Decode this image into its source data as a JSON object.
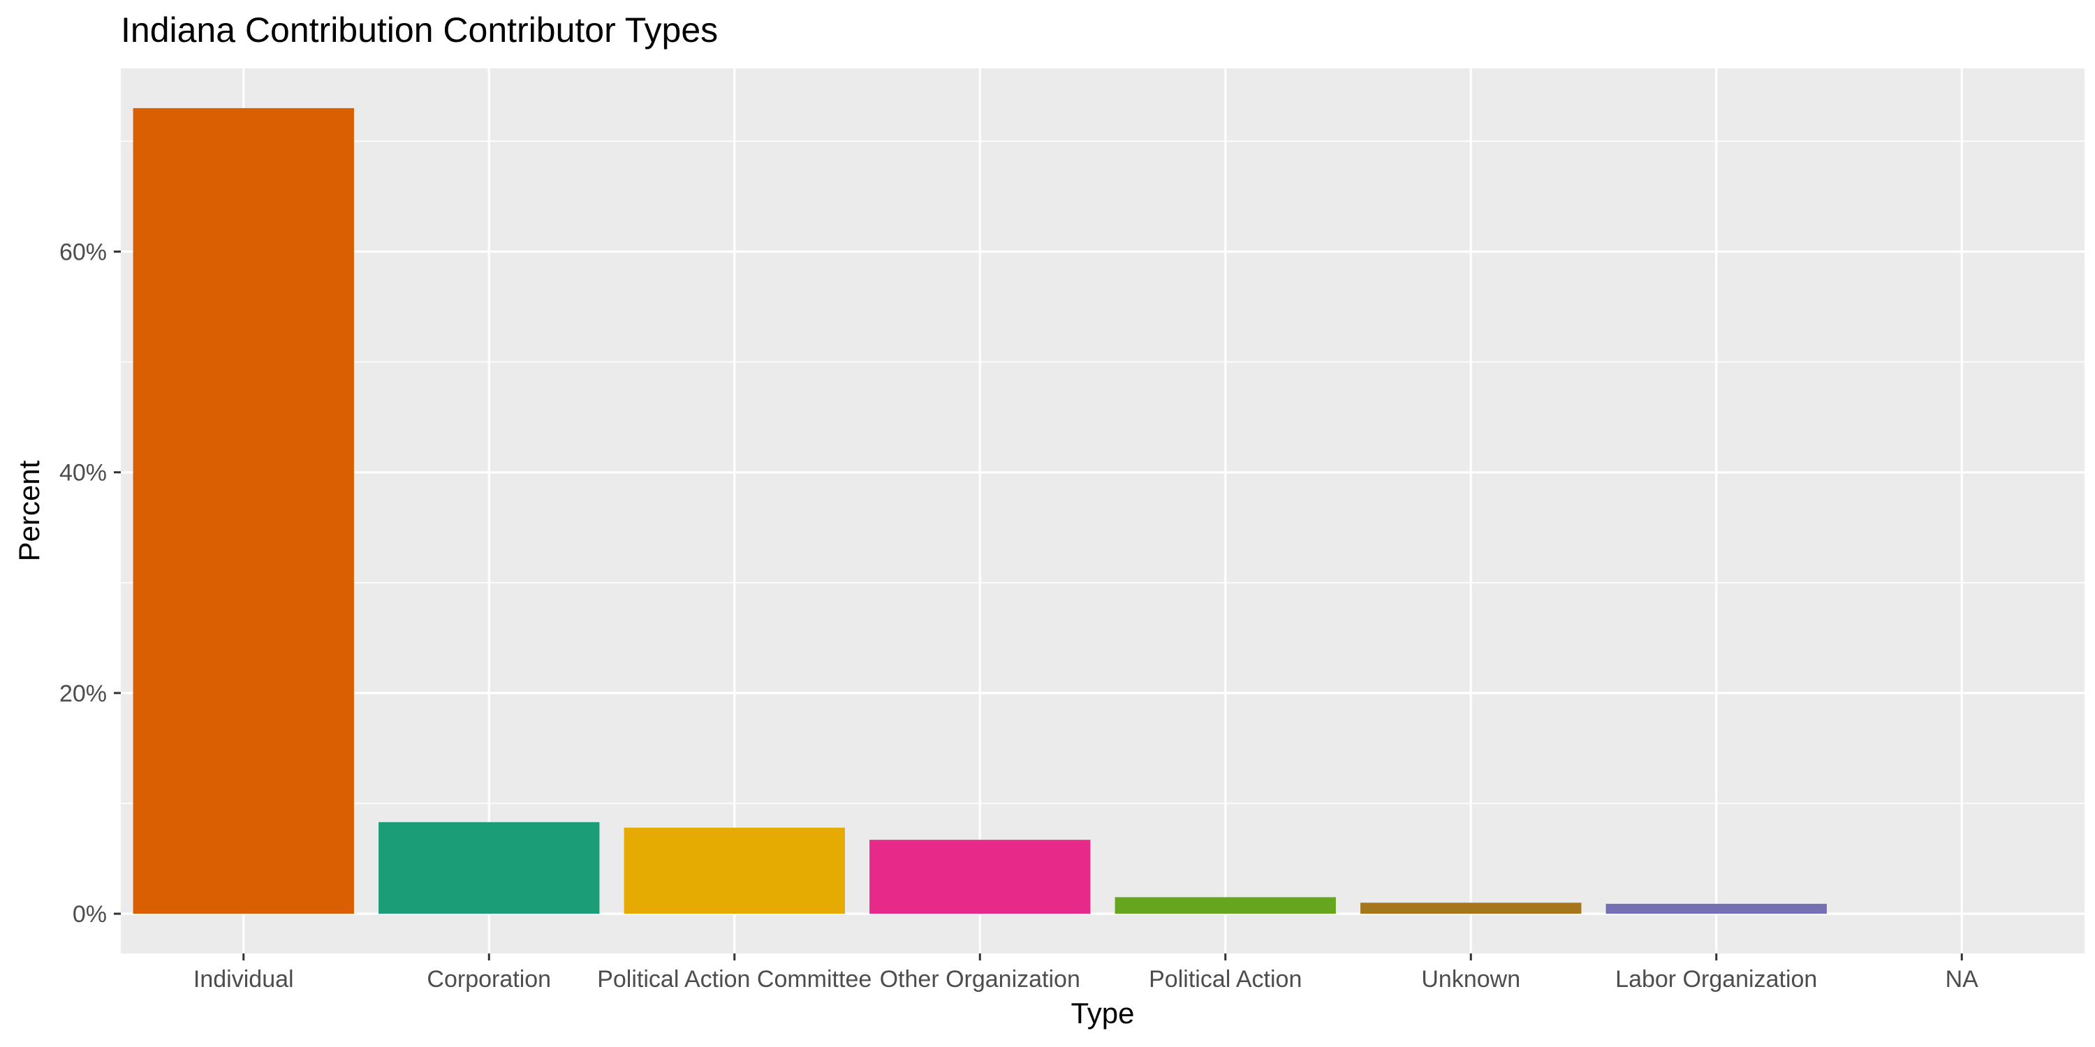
{
  "chart_data": {
    "type": "bar",
    "title": "Indiana Contribution Contributor Types",
    "xlabel": "Type",
    "ylabel": "Percent",
    "categories": [
      "Individual",
      "Corporation",
      "Political Action Committee",
      "Other Organization",
      "Political Action",
      "Unknown",
      "Labor Organization",
      "NA"
    ],
    "values": [
      73.0,
      8.3,
      7.8,
      6.7,
      1.5,
      1.0,
      0.9,
      0.0
    ],
    "colors": [
      "#D95F02",
      "#1B9E77",
      "#E6AB02",
      "#E7298A",
      "#66A61E",
      "#A6761D",
      "#7570B3",
      "#666666"
    ],
    "y_ticks": [
      0,
      20,
      40,
      60
    ],
    "y_tick_labels": [
      "0%",
      "20%",
      "40%",
      "60%"
    ],
    "ylim": [
      -3.6,
      76.6
    ],
    "grid": true,
    "legend": "none"
  }
}
